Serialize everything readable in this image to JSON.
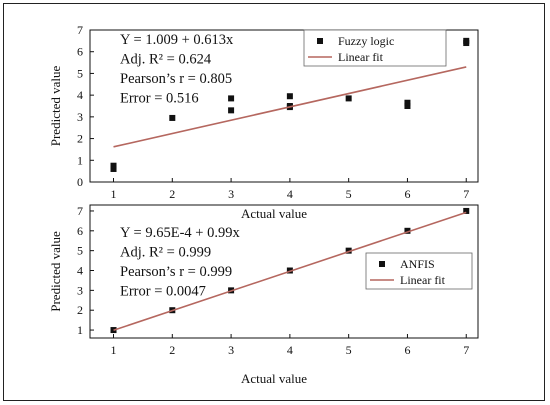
{
  "chart_data": [
    {
      "type": "scatter",
      "xlabel": "Actual value",
      "ylabel": "Predicted value",
      "xlim": [
        0.6,
        7.2
      ],
      "ylim": [
        0,
        7
      ],
      "xticks": [
        1,
        2,
        3,
        4,
        5,
        6,
        7
      ],
      "yticks": [
        0,
        1,
        2,
        3,
        4,
        5,
        6,
        7
      ],
      "grid": false,
      "legend_position": "top-right",
      "annotations": [
        "Y = 1.009 + 0.613x",
        "Adj. R² = 0.624",
        "Pearson’s r = 0.805",
        "Error = 0.516"
      ],
      "series": [
        {
          "name": "Fuzzy logic",
          "kind": "points",
          "color": "#111111",
          "x": [
            1,
            1,
            2,
            3,
            3,
            4,
            4,
            4,
            5,
            6,
            6,
            7,
            7
          ],
          "y": [
            0.6,
            0.75,
            2.95,
            3.3,
            3.85,
            3.45,
            3.5,
            3.95,
            3.85,
            3.5,
            3.65,
            6.4,
            6.5
          ]
        },
        {
          "name": "Linear fit",
          "kind": "line",
          "color": "#b5675f",
          "x": [
            1,
            7
          ],
          "y": [
            1.62,
            5.3
          ]
        }
      ]
    },
    {
      "type": "scatter",
      "xlabel": "Actual value",
      "ylabel": "Predicted value",
      "xlim": [
        0.6,
        7.2
      ],
      "ylim": [
        0.6,
        7.3
      ],
      "xticks": [
        1,
        2,
        3,
        4,
        5,
        6,
        7
      ],
      "yticks": [
        1,
        2,
        3,
        4,
        5,
        6,
        7
      ],
      "grid": false,
      "legend_position": "center-right",
      "annotations": [
        "Y = 9.65E-4 + 0.99x",
        "Adj. R² = 0.999",
        "Pearson’s r = 0.999",
        "Error = 0.0047"
      ],
      "series": [
        {
          "name": "ANFIS",
          "kind": "points",
          "color": "#111111",
          "x": [
            1,
            2,
            3,
            4,
            5,
            6,
            7
          ],
          "y": [
            1,
            2,
            3,
            4,
            5,
            6,
            7
          ]
        },
        {
          "name": "Linear fit",
          "kind": "line",
          "color": "#b5675f",
          "x": [
            1,
            7
          ],
          "y": [
            0.99,
            6.93
          ]
        }
      ]
    }
  ]
}
